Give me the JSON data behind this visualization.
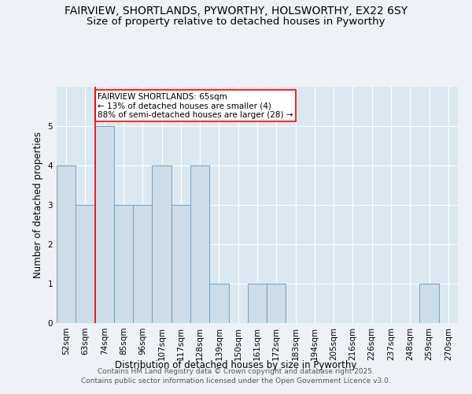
{
  "title_line1": "FAIRVIEW, SHORTLANDS, PYWORTHY, HOLSWORTHY, EX22 6SY",
  "title_line2": "Size of property relative to detached houses in Pyworthy",
  "xlabel": "Distribution of detached houses by size in Pyworthy",
  "ylabel": "Number of detached properties",
  "categories": [
    "52sqm",
    "63sqm",
    "74sqm",
    "85sqm",
    "96sqm",
    "107sqm",
    "117sqm",
    "128sqm",
    "139sqm",
    "150sqm",
    "161sqm",
    "172sqm",
    "183sqm",
    "194sqm",
    "205sqm",
    "216sqm",
    "226sqm",
    "237sqm",
    "248sqm",
    "259sqm",
    "270sqm"
  ],
  "values": [
    4,
    3,
    5,
    3,
    3,
    4,
    3,
    4,
    1,
    0,
    1,
    1,
    0,
    0,
    0,
    0,
    0,
    0,
    0,
    1,
    0
  ],
  "bar_color": "#ccdce8",
  "bar_edge_color": "#6699bb",
  "red_line_x": 1.5,
  "annotation_text": "FAIRVIEW SHORTLANDS: 65sqm\n← 13% of detached houses are smaller (4)\n88% of semi-detached houses are larger (28) →",
  "ylim": [
    0,
    6
  ],
  "yticks": [
    0,
    1,
    2,
    3,
    4,
    5,
    6
  ],
  "footer_line1": "Contains HM Land Registry data © Crown copyright and database right 2025.",
  "footer_line2": "Contains public sector information licensed under the Open Government Licence v3.0.",
  "bg_color": "#eef2f7",
  "plot_bg_color": "#dce8f0",
  "grid_color": "#ffffff",
  "title_fontsize": 10,
  "subtitle_fontsize": 9.5,
  "axis_label_fontsize": 8.5,
  "tick_fontsize": 7.5,
  "annotation_fontsize": 7.5,
  "footer_fontsize": 6.5
}
